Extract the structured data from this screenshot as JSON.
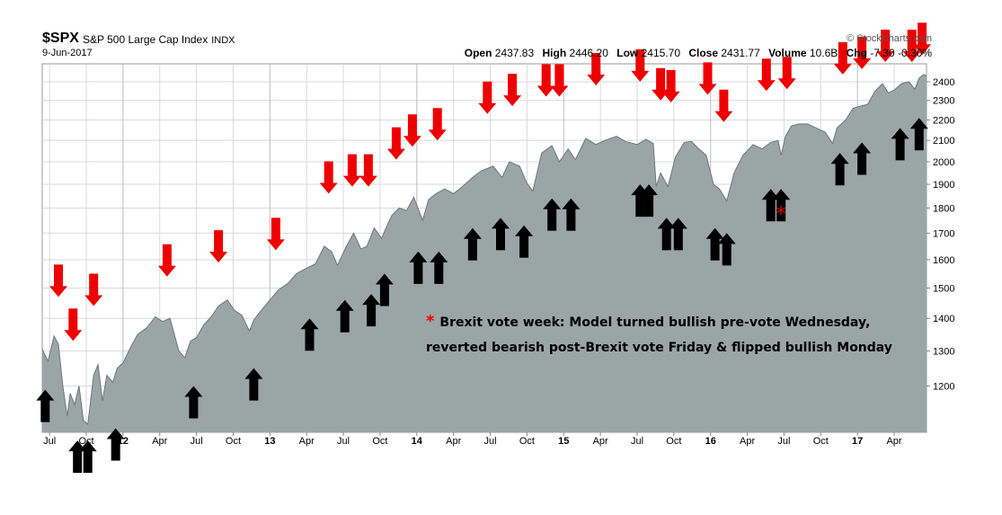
{
  "header": {
    "ticker": "$SPX",
    "name": "S&P 500 Large Cap Index",
    "exchange": "INDX",
    "date": "9-Jun-2017",
    "watermark": "© StockCharts.com",
    "open_label": "Open",
    "open": "2437.83",
    "high_label": "High",
    "high": "2446.20",
    "low_label": "Low",
    "low": "2415.70",
    "close_label": "Close",
    "close": "2431.77",
    "volume_label": "Volume",
    "volume": "10.6B",
    "chg_label": "Chg",
    "chg": "-7.30 -0.30%"
  },
  "annotation": {
    "star": "*",
    "line1": "Brexit vote week: Model turned bullish pre-vote Wednesday,",
    "line2": "reverted bearish post-Brexit vote Friday & flipped bullish Monday"
  },
  "colors": {
    "area_fill": "#9aa5a6",
    "area_line": "#6d7779",
    "bearish_arrow": "#ee0000",
    "bullish_arrow": "#000000",
    "grid": "#d9d9d9"
  },
  "chart_data": {
    "type": "area",
    "y_scale": "log",
    "ylim": [
      1080,
      2500
    ],
    "xlim": [
      2011.45,
      2017.47
    ],
    "y_ticks": [
      1200,
      1300,
      1400,
      1500,
      1600,
      1700,
      1800,
      1900,
      2000,
      2100,
      2200,
      2300,
      2400
    ],
    "x_ticks": [
      {
        "t": 2011.5,
        "label": "Jul",
        "bold": false
      },
      {
        "t": 2011.75,
        "label": "Oct",
        "bold": false
      },
      {
        "t": 2012.0,
        "label": "12",
        "bold": true
      },
      {
        "t": 2012.25,
        "label": "Apr",
        "bold": false
      },
      {
        "t": 2012.5,
        "label": "Jul",
        "bold": false
      },
      {
        "t": 2012.75,
        "label": "Oct",
        "bold": false
      },
      {
        "t": 2013.0,
        "label": "13",
        "bold": true
      },
      {
        "t": 2013.25,
        "label": "Apr",
        "bold": false
      },
      {
        "t": 2013.5,
        "label": "Jul",
        "bold": false
      },
      {
        "t": 2013.75,
        "label": "Oct",
        "bold": false
      },
      {
        "t": 2014.0,
        "label": "14",
        "bold": true
      },
      {
        "t": 2014.25,
        "label": "Apr",
        "bold": false
      },
      {
        "t": 2014.5,
        "label": "Jul",
        "bold": false
      },
      {
        "t": 2014.75,
        "label": "Oct",
        "bold": false
      },
      {
        "t": 2015.0,
        "label": "15",
        "bold": true
      },
      {
        "t": 2015.25,
        "label": "Apr",
        "bold": false
      },
      {
        "t": 2015.5,
        "label": "Jul",
        "bold": false
      },
      {
        "t": 2015.75,
        "label": "Oct",
        "bold": false
      },
      {
        "t": 2016.0,
        "label": "16",
        "bold": true
      },
      {
        "t": 2016.25,
        "label": "Apr",
        "bold": false
      },
      {
        "t": 2016.5,
        "label": "Jul",
        "bold": false
      },
      {
        "t": 2016.75,
        "label": "Oct",
        "bold": false
      },
      {
        "t": 2017.0,
        "label": "17",
        "bold": true
      },
      {
        "t": 2017.25,
        "label": "Apr",
        "bold": false
      }
    ],
    "series": [
      {
        "values": [
          [
            2011.45,
            1305
          ],
          [
            2011.49,
            1270
          ],
          [
            2011.53,
            1345
          ],
          [
            2011.56,
            1320
          ],
          [
            2011.59,
            1200
          ],
          [
            2011.62,
            1120
          ],
          [
            2011.64,
            1180
          ],
          [
            2011.67,
            1150
          ],
          [
            2011.7,
            1200
          ],
          [
            2011.73,
            1110
          ],
          [
            2011.76,
            1100
          ],
          [
            2011.8,
            1230
          ],
          [
            2011.83,
            1260
          ],
          [
            2011.86,
            1160
          ],
          [
            2011.89,
            1230
          ],
          [
            2011.93,
            1210
          ],
          [
            2011.96,
            1250
          ],
          [
            2012.0,
            1265
          ],
          [
            2012.05,
            1310
          ],
          [
            2012.1,
            1350
          ],
          [
            2012.16,
            1370
          ],
          [
            2012.22,
            1405
          ],
          [
            2012.27,
            1390
          ],
          [
            2012.32,
            1400
          ],
          [
            2012.38,
            1300
          ],
          [
            2012.42,
            1280
          ],
          [
            2012.46,
            1330
          ],
          [
            2012.5,
            1340
          ],
          [
            2012.55,
            1380
          ],
          [
            2012.6,
            1405
          ],
          [
            2012.65,
            1440
          ],
          [
            2012.71,
            1460
          ],
          [
            2012.76,
            1425
          ],
          [
            2012.81,
            1410
          ],
          [
            2012.86,
            1360
          ],
          [
            2012.89,
            1395
          ],
          [
            2012.94,
            1425
          ],
          [
            2013.0,
            1460
          ],
          [
            2013.06,
            1495
          ],
          [
            2013.12,
            1515
          ],
          [
            2013.18,
            1550
          ],
          [
            2013.25,
            1570
          ],
          [
            2013.31,
            1585
          ],
          [
            2013.37,
            1650
          ],
          [
            2013.42,
            1630
          ],
          [
            2013.46,
            1580
          ],
          [
            2013.52,
            1650
          ],
          [
            2013.57,
            1700
          ],
          [
            2013.62,
            1640
          ],
          [
            2013.66,
            1650
          ],
          [
            2013.71,
            1720
          ],
          [
            2013.76,
            1680
          ],
          [
            2013.79,
            1720
          ],
          [
            2013.83,
            1770
          ],
          [
            2013.88,
            1800
          ],
          [
            2013.93,
            1790
          ],
          [
            2013.98,
            1845
          ],
          [
            2014.04,
            1750
          ],
          [
            2014.08,
            1835
          ],
          [
            2014.13,
            1860
          ],
          [
            2014.19,
            1880
          ],
          [
            2014.25,
            1860
          ],
          [
            2014.31,
            1890
          ],
          [
            2014.38,
            1930
          ],
          [
            2014.44,
            1960
          ],
          [
            2014.52,
            1980
          ],
          [
            2014.58,
            1930
          ],
          [
            2014.63,
            2000
          ],
          [
            2014.7,
            1980
          ],
          [
            2014.75,
            1905
          ],
          [
            2014.79,
            1870
          ],
          [
            2014.85,
            2040
          ],
          [
            2014.92,
            2075
          ],
          [
            2014.97,
            2000
          ],
          [
            2015.03,
            2060
          ],
          [
            2015.08,
            2010
          ],
          [
            2015.15,
            2110
          ],
          [
            2015.22,
            2080
          ],
          [
            2015.28,
            2100
          ],
          [
            2015.36,
            2120
          ],
          [
            2015.42,
            2095
          ],
          [
            2015.5,
            2080
          ],
          [
            2015.56,
            2105
          ],
          [
            2015.61,
            2085
          ],
          [
            2015.63,
            1890
          ],
          [
            2015.66,
            1950
          ],
          [
            2015.71,
            1890
          ],
          [
            2015.76,
            2020
          ],
          [
            2015.82,
            2090
          ],
          [
            2015.87,
            2095
          ],
          [
            2015.92,
            2060
          ],
          [
            2015.97,
            2030
          ],
          [
            2016.02,
            1900
          ],
          [
            2016.06,
            1880
          ],
          [
            2016.11,
            1830
          ],
          [
            2016.16,
            1950
          ],
          [
            2016.22,
            2030
          ],
          [
            2016.29,
            2080
          ],
          [
            2016.35,
            2060
          ],
          [
            2016.41,
            2090
          ],
          [
            2016.46,
            2100
          ],
          [
            2016.48,
            2030
          ],
          [
            2016.51,
            2120
          ],
          [
            2016.55,
            2170
          ],
          [
            2016.6,
            2180
          ],
          [
            2016.66,
            2180
          ],
          [
            2016.72,
            2160
          ],
          [
            2016.78,
            2140
          ],
          [
            2016.83,
            2085
          ],
          [
            2016.86,
            2160
          ],
          [
            2016.92,
            2200
          ],
          [
            2016.97,
            2260
          ],
          [
            2017.02,
            2270
          ],
          [
            2017.07,
            2280
          ],
          [
            2017.12,
            2350
          ],
          [
            2017.17,
            2390
          ],
          [
            2017.21,
            2340
          ],
          [
            2017.25,
            2355
          ],
          [
            2017.3,
            2390
          ],
          [
            2017.35,
            2400
          ],
          [
            2017.39,
            2360
          ],
          [
            2017.42,
            2420
          ],
          [
            2017.45,
            2440
          ],
          [
            2017.47,
            2432
          ]
        ]
      }
    ],
    "sell_signals": [
      {
        "t": 2011.56,
        "y": 1470
      },
      {
        "t": 2011.66,
        "y": 1330
      },
      {
        "t": 2011.8,
        "y": 1440
      },
      {
        "t": 2012.3,
        "y": 1540
      },
      {
        "t": 2012.65,
        "y": 1590
      },
      {
        "t": 2013.04,
        "y": 1635
      },
      {
        "t": 2013.4,
        "y": 1860
      },
      {
        "t": 2013.56,
        "y": 1890
      },
      {
        "t": 2013.67,
        "y": 1890
      },
      {
        "t": 2013.86,
        "y": 2010
      },
      {
        "t": 2013.97,
        "y": 2070
      },
      {
        "t": 2014.14,
        "y": 2100
      },
      {
        "t": 2014.48,
        "y": 2230
      },
      {
        "t": 2014.65,
        "y": 2270
      },
      {
        "t": 2014.88,
        "y": 2320
      },
      {
        "t": 2014.97,
        "y": 2320
      },
      {
        "t": 2015.22,
        "y": 2380
      },
      {
        "t": 2015.52,
        "y": 2400
      },
      {
        "t": 2015.66,
        "y": 2300
      },
      {
        "t": 2015.73,
        "y": 2290
      },
      {
        "t": 2015.98,
        "y": 2330
      },
      {
        "t": 2016.09,
        "y": 2190
      },
      {
        "t": 2016.38,
        "y": 2350
      },
      {
        "t": 2016.52,
        "y": 2360
      },
      {
        "t": 2016.9,
        "y": 2440
      },
      {
        "t": 2017.03,
        "y": 2470
      },
      {
        "t": 2017.19,
        "y": 2510
      },
      {
        "t": 2017.37,
        "y": 2510
      },
      {
        "t": 2017.44,
        "y": 2550
      }
    ],
    "buy_signals": [
      {
        "t": 2011.47,
        "y": 1190
      },
      {
        "t": 2011.69,
        "y": 1060
      },
      {
        "t": 2011.76,
        "y": 1060
      },
      {
        "t": 2011.95,
        "y": 1090
      },
      {
        "t": 2012.48,
        "y": 1200
      },
      {
        "t": 2012.89,
        "y": 1250
      },
      {
        "t": 2013.27,
        "y": 1400
      },
      {
        "t": 2013.51,
        "y": 1460
      },
      {
        "t": 2013.69,
        "y": 1480
      },
      {
        "t": 2013.78,
        "y": 1550
      },
      {
        "t": 2014.01,
        "y": 1630
      },
      {
        "t": 2014.15,
        "y": 1630
      },
      {
        "t": 2014.38,
        "y": 1720
      },
      {
        "t": 2014.57,
        "y": 1760
      },
      {
        "t": 2014.73,
        "y": 1730
      },
      {
        "t": 2014.92,
        "y": 1840
      },
      {
        "t": 2015.05,
        "y": 1840
      },
      {
        "t": 2015.52,
        "y": 1900
      },
      {
        "t": 2015.58,
        "y": 1900
      },
      {
        "t": 2015.7,
        "y": 1760
      },
      {
        "t": 2015.78,
        "y": 1760
      },
      {
        "t": 2016.03,
        "y": 1720
      },
      {
        "t": 2016.11,
        "y": 1700
      },
      {
        "t": 2016.41,
        "y": 1880
      },
      {
        "t": 2016.48,
        "y": 1880
      },
      {
        "t": 2016.88,
        "y": 2040
      },
      {
        "t": 2017.03,
        "y": 2090
      },
      {
        "t": 2017.29,
        "y": 2160
      },
      {
        "t": 2017.42,
        "y": 2210
      }
    ],
    "brexit_marker": {
      "t": 2016.48,
      "y": 1800,
      "label": "*"
    }
  }
}
